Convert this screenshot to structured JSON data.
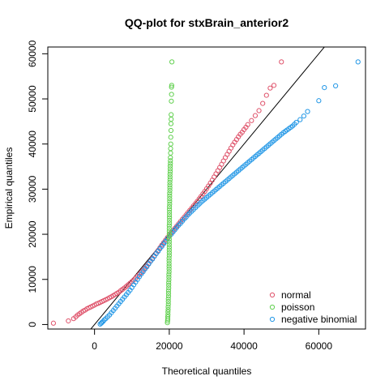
{
  "chart_data": {
    "type": "scatter",
    "title": "QQ-plot for stxBrain_anterior2",
    "xlabel": "Theoretical quantiles",
    "ylabel": "Empirical quantiles",
    "xlim": [
      -12500,
      72500
    ],
    "ylim": [
      -1000,
      61500
    ],
    "x_ticks": [
      0,
      20000,
      40000,
      60000
    ],
    "x_tick_labels": [
      "0",
      "20000",
      "40000",
      "60000"
    ],
    "y_ticks": [
      0,
      10000,
      20000,
      30000,
      40000,
      50000,
      60000
    ],
    "y_tick_labels": [
      "0",
      "10000",
      "20000",
      "30000",
      "40000",
      "50000",
      "60000"
    ],
    "grid": false,
    "legend_position": "bottom-right",
    "reference_line": {
      "slope": 1,
      "intercept": 0,
      "color": "#000000"
    },
    "series": [
      {
        "name": "normal",
        "color": "#DF536B",
        "marker": "open-circle",
        "points": [
          [
            -11000,
            300
          ],
          [
            -7000,
            800
          ],
          [
            -5600,
            1300
          ],
          [
            -5000,
            1700
          ],
          [
            -4500,
            2100
          ],
          [
            -4000,
            2400
          ],
          [
            -3500,
            2700
          ],
          [
            -3000,
            3000
          ],
          [
            -2500,
            3200
          ],
          [
            -2000,
            3500
          ],
          [
            -1500,
            3700
          ],
          [
            -1000,
            3900
          ],
          [
            -500,
            4100
          ],
          [
            0,
            4300
          ],
          [
            500,
            4550
          ],
          [
            1000,
            4700
          ],
          [
            1500,
            4900
          ],
          [
            2000,
            5100
          ],
          [
            2500,
            5300
          ],
          [
            3000,
            5500
          ],
          [
            3500,
            5700
          ],
          [
            4000,
            5950
          ],
          [
            4500,
            6150
          ],
          [
            5000,
            6400
          ],
          [
            5500,
            6650
          ],
          [
            6000,
            6900
          ],
          [
            6500,
            7150
          ],
          [
            7000,
            7500
          ],
          [
            7500,
            7800
          ],
          [
            8000,
            8100
          ],
          [
            8500,
            8450
          ],
          [
            9000,
            8800
          ],
          [
            9500,
            9150
          ],
          [
            10000,
            9500
          ],
          [
            10500,
            9900
          ],
          [
            11000,
            10300
          ],
          [
            11500,
            10700
          ],
          [
            12000,
            11100
          ],
          [
            12500,
            11550
          ],
          [
            13000,
            12000
          ],
          [
            13500,
            12500
          ],
          [
            14000,
            13000
          ],
          [
            14500,
            13550
          ],
          [
            15000,
            14100
          ],
          [
            15500,
            14650
          ],
          [
            16000,
            15200
          ],
          [
            16500,
            15800
          ],
          [
            17000,
            16400
          ],
          [
            17500,
            17000
          ],
          [
            18000,
            17600
          ],
          [
            18500,
            18150
          ],
          [
            19000,
            18700
          ],
          [
            19500,
            19250
          ],
          [
            20000,
            19800
          ],
          [
            20500,
            20300
          ],
          [
            21000,
            20800
          ],
          [
            21500,
            21300
          ],
          [
            22000,
            21800
          ],
          [
            22500,
            22300
          ],
          [
            23000,
            22800
          ],
          [
            23500,
            23300
          ],
          [
            24000,
            23800
          ],
          [
            24500,
            24300
          ],
          [
            25000,
            24800
          ],
          [
            25500,
            25300
          ],
          [
            26000,
            25800
          ],
          [
            26500,
            26300
          ],
          [
            27000,
            26800
          ],
          [
            27500,
            27300
          ],
          [
            28000,
            27850
          ],
          [
            28500,
            28400
          ],
          [
            29000,
            28950
          ],
          [
            29500,
            29500
          ],
          [
            30000,
            30100
          ],
          [
            30500,
            30700
          ],
          [
            31000,
            31350
          ],
          [
            31500,
            32000
          ],
          [
            32000,
            32700
          ],
          [
            32500,
            33400
          ],
          [
            33000,
            34100
          ],
          [
            33500,
            34800
          ],
          [
            34000,
            35500
          ],
          [
            34500,
            36250
          ],
          [
            35000,
            37000
          ],
          [
            35500,
            37700
          ],
          [
            36000,
            38400
          ],
          [
            36500,
            39100
          ],
          [
            37000,
            39800
          ],
          [
            37500,
            40400
          ],
          [
            38000,
            41000
          ],
          [
            38500,
            41600
          ],
          [
            39000,
            42150
          ],
          [
            39500,
            42600
          ],
          [
            40000,
            43200
          ],
          [
            40500,
            43700
          ],
          [
            41000,
            44300
          ],
          [
            42000,
            45200
          ],
          [
            43000,
            46300
          ],
          [
            44000,
            47400
          ],
          [
            45000,
            49000
          ],
          [
            46000,
            50800
          ],
          [
            47000,
            52400
          ],
          [
            48000,
            53000
          ],
          [
            50000,
            58200
          ]
        ]
      },
      {
        "name": "poisson",
        "color": "#61D04F",
        "marker": "open-circle",
        "points": [
          [
            19500,
            400
          ],
          [
            19550,
            800
          ],
          [
            19600,
            1200
          ],
          [
            19600,
            1700
          ],
          [
            19650,
            2200
          ],
          [
            19650,
            2800
          ],
          [
            19700,
            3300
          ],
          [
            19700,
            3900
          ],
          [
            19750,
            4500
          ],
          [
            19750,
            5100
          ],
          [
            19750,
            5700
          ],
          [
            19800,
            6300
          ],
          [
            19800,
            6900
          ],
          [
            19800,
            7500
          ],
          [
            19850,
            8100
          ],
          [
            19850,
            8700
          ],
          [
            19850,
            9300
          ],
          [
            19900,
            9900
          ],
          [
            19900,
            10500
          ],
          [
            19900,
            11100
          ],
          [
            19950,
            11700
          ],
          [
            19950,
            12300
          ],
          [
            19950,
            12900
          ],
          [
            19950,
            13500
          ],
          [
            19950,
            14100
          ],
          [
            19950,
            14700
          ],
          [
            20000,
            15300
          ],
          [
            20000,
            15900
          ],
          [
            20000,
            16500
          ],
          [
            20000,
            17100
          ],
          [
            20000,
            17700
          ],
          [
            20000,
            18300
          ],
          [
            20000,
            18900
          ],
          [
            20000,
            19500
          ],
          [
            20000,
            20100
          ],
          [
            20000,
            20700
          ],
          [
            20000,
            21300
          ],
          [
            20000,
            21900
          ],
          [
            20050,
            22500
          ],
          [
            20050,
            23100
          ],
          [
            20050,
            23700
          ],
          [
            20050,
            24300
          ],
          [
            20050,
            24900
          ],
          [
            20050,
            25500
          ],
          [
            20050,
            26100
          ],
          [
            20100,
            26700
          ],
          [
            20100,
            27300
          ],
          [
            20100,
            27900
          ],
          [
            20100,
            28500
          ],
          [
            20100,
            29100
          ],
          [
            20150,
            29700
          ],
          [
            20150,
            30300
          ],
          [
            20150,
            30900
          ],
          [
            20150,
            31500
          ],
          [
            20200,
            32100
          ],
          [
            20200,
            32700
          ],
          [
            20200,
            33300
          ],
          [
            20250,
            33900
          ],
          [
            20250,
            34500
          ],
          [
            20250,
            35100
          ],
          [
            20300,
            35700
          ],
          [
            20300,
            36300
          ],
          [
            20300,
            37000
          ],
          [
            20350,
            38000
          ],
          [
            20350,
            39000
          ],
          [
            20400,
            40000
          ],
          [
            20400,
            41500
          ],
          [
            20450,
            43000
          ],
          [
            20450,
            44500
          ],
          [
            20500,
            45500
          ],
          [
            20500,
            46500
          ],
          [
            20550,
            49500
          ],
          [
            20600,
            51000
          ],
          [
            20600,
            52600
          ],
          [
            20650,
            53000
          ],
          [
            20700,
            58200
          ]
        ]
      },
      {
        "name": "negative binomial",
        "color": "#2297E6",
        "marker": "open-circle",
        "points": [
          [
            1500,
            100
          ],
          [
            1800,
            300
          ],
          [
            2000,
            500
          ],
          [
            2300,
            700
          ],
          [
            2600,
            1000
          ],
          [
            3000,
            1300
          ],
          [
            3500,
            1700
          ],
          [
            4000,
            2100
          ],
          [
            4500,
            2600
          ],
          [
            5000,
            3100
          ],
          [
            5500,
            3600
          ],
          [
            6000,
            4100
          ],
          [
            6500,
            4600
          ],
          [
            7000,
            5100
          ],
          [
            7500,
            5600
          ],
          [
            8000,
            6100
          ],
          [
            8500,
            6600
          ],
          [
            9000,
            7100
          ],
          [
            9500,
            7600
          ],
          [
            10000,
            8200
          ],
          [
            10500,
            8800
          ],
          [
            11000,
            9400
          ],
          [
            11500,
            10000
          ],
          [
            12000,
            10600
          ],
          [
            12500,
            11200
          ],
          [
            13000,
            11700
          ],
          [
            13500,
            12300
          ],
          [
            14000,
            12800
          ],
          [
            14500,
            13400
          ],
          [
            15000,
            14000
          ],
          [
            15500,
            14500
          ],
          [
            16000,
            15100
          ],
          [
            16500,
            15700
          ],
          [
            17000,
            16200
          ],
          [
            17500,
            16800
          ],
          [
            18000,
            17300
          ],
          [
            18500,
            17900
          ],
          [
            19000,
            18400
          ],
          [
            19500,
            19000
          ],
          [
            20000,
            19500
          ],
          [
            20500,
            20000
          ],
          [
            21000,
            20500
          ],
          [
            21500,
            21000
          ],
          [
            22000,
            21500
          ],
          [
            22500,
            22000
          ],
          [
            23000,
            22400
          ],
          [
            23500,
            22900
          ],
          [
            24000,
            23400
          ],
          [
            24500,
            23800
          ],
          [
            25000,
            24300
          ],
          [
            25500,
            24700
          ],
          [
            26000,
            25100
          ],
          [
            26500,
            25500
          ],
          [
            27000,
            25900
          ],
          [
            27500,
            26300
          ],
          [
            28000,
            26700
          ],
          [
            28500,
            27100
          ],
          [
            29000,
            27450
          ],
          [
            29500,
            27800
          ],
          [
            30000,
            28150
          ],
          [
            30500,
            28500
          ],
          [
            31000,
            28850
          ],
          [
            31500,
            29200
          ],
          [
            32000,
            29550
          ],
          [
            32500,
            29900
          ],
          [
            33000,
            30250
          ],
          [
            33500,
            30600
          ],
          [
            34000,
            30950
          ],
          [
            34500,
            31300
          ],
          [
            35000,
            31650
          ],
          [
            35500,
            32000
          ],
          [
            36000,
            32350
          ],
          [
            36500,
            32700
          ],
          [
            37000,
            33050
          ],
          [
            37500,
            33400
          ],
          [
            38000,
            33750
          ],
          [
            38500,
            34100
          ],
          [
            39000,
            34450
          ],
          [
            39500,
            34800
          ],
          [
            40000,
            35150
          ],
          [
            40500,
            35500
          ],
          [
            41000,
            35850
          ],
          [
            41500,
            36200
          ],
          [
            42000,
            36550
          ],
          [
            42500,
            36900
          ],
          [
            43000,
            37250
          ],
          [
            43500,
            37600
          ],
          [
            44000,
            37950
          ],
          [
            44500,
            38300
          ],
          [
            45000,
            38650
          ],
          [
            45500,
            39000
          ],
          [
            46000,
            39350
          ],
          [
            46500,
            39700
          ],
          [
            47000,
            40050
          ],
          [
            47500,
            40400
          ],
          [
            48000,
            40750
          ],
          [
            48500,
            41100
          ],
          [
            49000,
            41450
          ],
          [
            49500,
            41800
          ],
          [
            50000,
            42150
          ],
          [
            50500,
            42500
          ],
          [
            51000,
            42800
          ],
          [
            51500,
            43100
          ],
          [
            52000,
            43400
          ],
          [
            52500,
            43700
          ],
          [
            53000,
            44000
          ],
          [
            53500,
            44400
          ],
          [
            54000,
            44800
          ],
          [
            55000,
            45400
          ],
          [
            56000,
            46200
          ],
          [
            57000,
            47200
          ],
          [
            60000,
            49600
          ],
          [
            61500,
            52500
          ],
          [
            64500,
            52900
          ],
          [
            70500,
            58200
          ]
        ]
      }
    ]
  }
}
